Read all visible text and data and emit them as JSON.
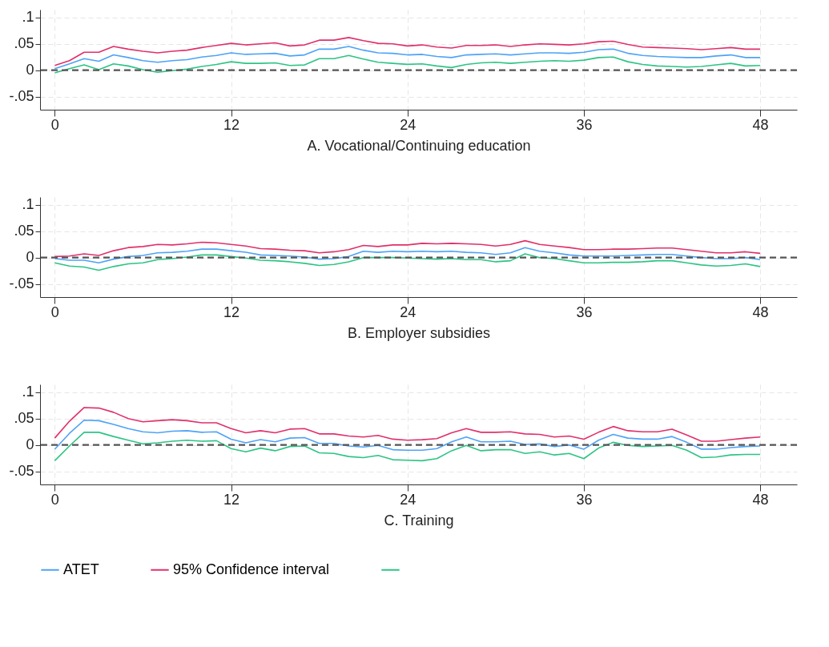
{
  "chart_data": [
    {
      "type": "line",
      "xlabel": "A. Vocational/Continuing education",
      "x": [
        0,
        1,
        2,
        3,
        4,
        5,
        6,
        7,
        8,
        9,
        10,
        11,
        12,
        13,
        14,
        15,
        16,
        17,
        18,
        19,
        20,
        21,
        22,
        23,
        24,
        25,
        26,
        27,
        28,
        29,
        30,
        31,
        32,
        33,
        34,
        35,
        36,
        37,
        38,
        39,
        40,
        41,
        42,
        43,
        44,
        45,
        46,
        47,
        48
      ],
      "xlim": [
        -1,
        50.5
      ],
      "xticks": [
        0,
        12,
        24,
        36,
        48
      ],
      "ylim": [
        -0.075,
        0.115
      ],
      "yticks": [
        {
          "value": -0.05,
          "label": "-.05"
        },
        {
          "value": 0,
          "label": "0"
        },
        {
          "value": 0.05,
          "label": ".05"
        },
        {
          "value": 0.1,
          "label": ".1"
        }
      ],
      "grid": true,
      "legend": false,
      "line_style": "solid",
      "marker": "none",
      "ref_lines": [
        {
          "axis": "y",
          "value": 0,
          "color": "#555555",
          "line_style": "dashed"
        }
      ],
      "series": [
        {
          "color": "#4da3f7",
          "values": [
            0.003,
            0.012,
            0.022,
            0.017,
            0.029,
            0.024,
            0.018,
            0.015,
            0.018,
            0.02,
            0.025,
            0.028,
            0.033,
            0.03,
            0.031,
            0.032,
            0.027,
            0.029,
            0.04,
            0.04,
            0.045,
            0.038,
            0.033,
            0.032,
            0.029,
            0.03,
            0.026,
            0.024,
            0.029,
            0.03,
            0.031,
            0.029,
            0.031,
            0.033,
            0.033,
            0.032,
            0.034,
            0.039,
            0.04,
            0.032,
            0.028,
            0.026,
            0.025,
            0.024,
            0.024,
            0.027,
            0.029,
            0.024,
            0.024
          ]
        },
        {
          "color": "#e0306a",
          "values": [
            0.009,
            0.018,
            0.034,
            0.034,
            0.045,
            0.04,
            0.036,
            0.033,
            0.036,
            0.038,
            0.043,
            0.047,
            0.051,
            0.048,
            0.05,
            0.052,
            0.046,
            0.048,
            0.057,
            0.057,
            0.062,
            0.056,
            0.051,
            0.05,
            0.046,
            0.048,
            0.044,
            0.042,
            0.047,
            0.047,
            0.048,
            0.045,
            0.048,
            0.05,
            0.049,
            0.048,
            0.05,
            0.054,
            0.055,
            0.049,
            0.044,
            0.043,
            0.042,
            0.041,
            0.039,
            0.041,
            0.043,
            0.04,
            0.04
          ]
        },
        {
          "color": "#2cc485",
          "values": [
            -0.005,
            0.003,
            0.01,
            0.001,
            0.012,
            0.008,
            0.001,
            -0.004,
            -0.001,
            0.002,
            0.007,
            0.011,
            0.016,
            0.013,
            0.013,
            0.014,
            0.009,
            0.01,
            0.022,
            0.022,
            0.028,
            0.021,
            0.015,
            0.013,
            0.011,
            0.012,
            0.008,
            0.005,
            0.011,
            0.014,
            0.015,
            0.013,
            0.015,
            0.017,
            0.018,
            0.017,
            0.019,
            0.024,
            0.025,
            0.016,
            0.011,
            0.008,
            0.007,
            0.006,
            0.007,
            0.01,
            0.013,
            0.008,
            0.009
          ]
        }
      ]
    },
    {
      "type": "line",
      "xlabel": "B. Employer subsidies",
      "x": [
        0,
        1,
        2,
        3,
        4,
        5,
        6,
        7,
        8,
        9,
        10,
        11,
        12,
        13,
        14,
        15,
        16,
        17,
        18,
        19,
        20,
        21,
        22,
        23,
        24,
        25,
        26,
        27,
        28,
        29,
        30,
        31,
        32,
        33,
        34,
        35,
        36,
        37,
        38,
        39,
        40,
        41,
        42,
        43,
        44,
        45,
        46,
        47,
        48
      ],
      "xlim": [
        -1,
        50.5
      ],
      "xticks": [
        0,
        12,
        24,
        36,
        48
      ],
      "ylim": [
        -0.075,
        0.115
      ],
      "yticks": [
        {
          "value": -0.05,
          "label": "-.05"
        },
        {
          "value": 0,
          "label": "0"
        },
        {
          "value": 0.05,
          "label": ".05"
        },
        {
          "value": 0.1,
          "label": ".1"
        }
      ],
      "grid": true,
      "legend": false,
      "line_style": "solid",
      "marker": "none",
      "ref_lines": [
        {
          "axis": "y",
          "value": 0,
          "color": "#555555",
          "line_style": "dashed"
        }
      ],
      "series": [
        {
          "color": "#4da3f7",
          "values": [
            -0.002,
            -0.005,
            -0.005,
            -0.01,
            -0.003,
            0.002,
            0.004,
            0.009,
            0.01,
            0.012,
            0.016,
            0.016,
            0.013,
            0.01,
            0.005,
            0.004,
            0.003,
            0.001,
            -0.003,
            -0.002,
            0.002,
            0.012,
            0.01,
            0.012,
            0.011,
            0.012,
            0.011,
            0.012,
            0.01,
            0.009,
            0.006,
            0.009,
            0.019,
            0.012,
            0.009,
            0.005,
            0.003,
            0.003,
            0.003,
            0.004,
            0.005,
            0.006,
            0.006,
            0.003,
            0,
            -0.002,
            -0.002,
            0,
            -0.004
          ]
        },
        {
          "color": "#e0306a",
          "values": [
            0.002,
            0.003,
            0.007,
            0.004,
            0.013,
            0.019,
            0.021,
            0.025,
            0.024,
            0.026,
            0.029,
            0.028,
            0.025,
            0.022,
            0.017,
            0.016,
            0.014,
            0.013,
            0.009,
            0.011,
            0.015,
            0.023,
            0.021,
            0.024,
            0.024,
            0.027,
            0.026,
            0.027,
            0.026,
            0.025,
            0.022,
            0.025,
            0.032,
            0.025,
            0.022,
            0.019,
            0.015,
            0.015,
            0.016,
            0.016,
            0.017,
            0.018,
            0.018,
            0.015,
            0.012,
            0.009,
            0.009,
            0.011,
            0.008
          ]
        },
        {
          "color": "#2cc485",
          "values": [
            -0.01,
            -0.016,
            -0.018,
            -0.024,
            -0.017,
            -0.012,
            -0.01,
            -0.004,
            -0.002,
            0.001,
            0.005,
            0.005,
            0.002,
            -0.001,
            -0.005,
            -0.006,
            -0.008,
            -0.011,
            -0.015,
            -0.013,
            -0.008,
            0,
            0,
            0,
            -0.001,
            -0.002,
            -0.003,
            -0.002,
            -0.004,
            -0.004,
            -0.008,
            -0.006,
            0.007,
            0,
            -0.002,
            -0.006,
            -0.01,
            -0.01,
            -0.009,
            -0.009,
            -0.008,
            -0.006,
            -0.006,
            -0.01,
            -0.014,
            -0.016,
            -0.015,
            -0.012,
            -0.017
          ]
        }
      ]
    },
    {
      "type": "line",
      "xlabel": "C. Training",
      "x": [
        0,
        1,
        2,
        3,
        4,
        5,
        6,
        7,
        8,
        9,
        10,
        11,
        12,
        13,
        14,
        15,
        16,
        17,
        18,
        19,
        20,
        21,
        22,
        23,
        24,
        25,
        26,
        27,
        28,
        29,
        30,
        31,
        32,
        33,
        34,
        35,
        36,
        37,
        38,
        39,
        40,
        41,
        42,
        43,
        44,
        45,
        46,
        47,
        48
      ],
      "xlim": [
        -1,
        50.5
      ],
      "xticks": [
        0,
        12,
        24,
        36,
        48
      ],
      "ylim": [
        -0.075,
        0.115
      ],
      "yticks": [
        {
          "value": -0.05,
          "label": "-.05"
        },
        {
          "value": 0,
          "label": "0"
        },
        {
          "value": 0.05,
          "label": ".05"
        },
        {
          "value": 0.1,
          "label": ".1"
        }
      ],
      "grid": true,
      "legend": "bottom",
      "line_style": "solid",
      "marker": "none",
      "ref_lines": [
        {
          "axis": "y",
          "value": 0,
          "color": "#555555",
          "line_style": "dashed"
        }
      ],
      "series": [
        {
          "name": "ATET",
          "color": "#4da3f7",
          "values": [
            -0.008,
            0.022,
            0.047,
            0.046,
            0.039,
            0.031,
            0.025,
            0.023,
            0.026,
            0.027,
            0.024,
            0.025,
            0.011,
            0.004,
            0.01,
            0.006,
            0.013,
            0.014,
            0.003,
            0.003,
            -0.002,
            -0.004,
            -0.001,
            -0.009,
            -0.01,
            -0.01,
            -0.007,
            0.006,
            0.015,
            0.006,
            0.006,
            0.007,
            0.001,
            0.002,
            -0.003,
            0,
            -0.008,
            0.009,
            0.02,
            0.013,
            0.011,
            0.011,
            0.016,
            0.005,
            -0.008,
            -0.008,
            -0.005,
            -0.003,
            -0.002
          ]
        },
        {
          "name": "95% Confidence interval",
          "color": "#e0306a",
          "values": [
            0.013,
            0.045,
            0.071,
            0.07,
            0.062,
            0.05,
            0.044,
            0.046,
            0.048,
            0.046,
            0.042,
            0.042,
            0.031,
            0.023,
            0.027,
            0.023,
            0.03,
            0.031,
            0.021,
            0.021,
            0.017,
            0.015,
            0.018,
            0.011,
            0.009,
            0.01,
            0.012,
            0.023,
            0.031,
            0.024,
            0.024,
            0.025,
            0.021,
            0.02,
            0.015,
            0.017,
            0.011,
            0.024,
            0.035,
            0.027,
            0.025,
            0.025,
            0.03,
            0.019,
            0.007,
            0.007,
            0.01,
            0.013,
            0.015
          ]
        },
        {
          "color": "#2cc485",
          "values": [
            -0.03,
            -0.002,
            0.024,
            0.024,
            0.016,
            0.009,
            0.002,
            0.004,
            0.007,
            0.009,
            0.007,
            0.008,
            -0.007,
            -0.013,
            -0.006,
            -0.011,
            -0.003,
            -0.002,
            -0.015,
            -0.016,
            -0.022,
            -0.024,
            -0.02,
            -0.028,
            -0.029,
            -0.03,
            -0.026,
            -0.011,
            -0.001,
            -0.011,
            -0.009,
            -0.009,
            -0.016,
            -0.013,
            -0.019,
            -0.016,
            -0.026,
            -0.006,
            0.005,
            -0.001,
            -0.003,
            -0.002,
            -0.001,
            -0.01,
            -0.024,
            -0.023,
            -0.019,
            -0.018,
            -0.018
          ]
        }
      ]
    }
  ]
}
